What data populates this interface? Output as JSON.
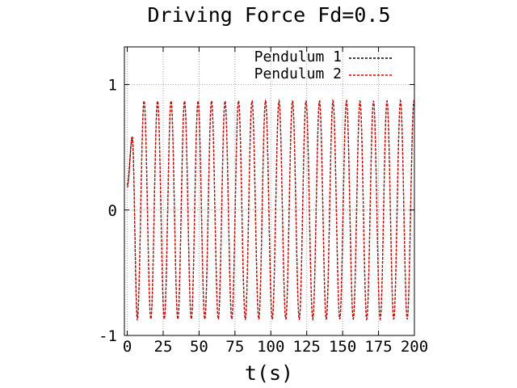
{
  "chart_data": {
    "type": "line",
    "title": "Driving Force Fd=0.5",
    "xlabel": "t(s)",
    "ylabel": "",
    "xlim": [
      -2,
      200
    ],
    "ylim": [
      -1,
      1.3
    ],
    "x_ticks": [
      0,
      25,
      50,
      75,
      100,
      125,
      150,
      175,
      200
    ],
    "y_ticks": [
      -1,
      0,
      1
    ],
    "x_tick_labels": [
      "0",
      "25",
      "50",
      "75",
      "100",
      "125",
      "150",
      "175",
      "200"
    ],
    "y_tick_labels": [
      "-1",
      "0",
      "1"
    ],
    "grid": true,
    "legend_position": "top-right",
    "series": [
      {
        "name": "Pendulum 1",
        "color": "#000000",
        "dash": "dashed",
        "model": {
          "t_start": 0,
          "t_end": 200,
          "sample_step": 0.25,
          "steady_amplitude": 0.87,
          "steady_period_s": 9.4,
          "transient_peak": 0.57,
          "transient_peak_time_s": 3.5,
          "transient_trough": -0.86,
          "transient_trough_time_s": 7.0,
          "initial_value": 0.2
        }
      },
      {
        "name": "Pendulum 2",
        "color": "#e00000",
        "dash": "dashed",
        "model": {
          "t_start": 0,
          "t_end": 200,
          "sample_step": 0.25,
          "steady_amplitude": 0.87,
          "steady_period_s": 9.4,
          "transient_peak": 0.59,
          "transient_peak_time_s": 3.5,
          "transient_trough": -0.88,
          "transient_trough_time_s": 7.0,
          "initial_value": 0.18
        }
      }
    ]
  }
}
